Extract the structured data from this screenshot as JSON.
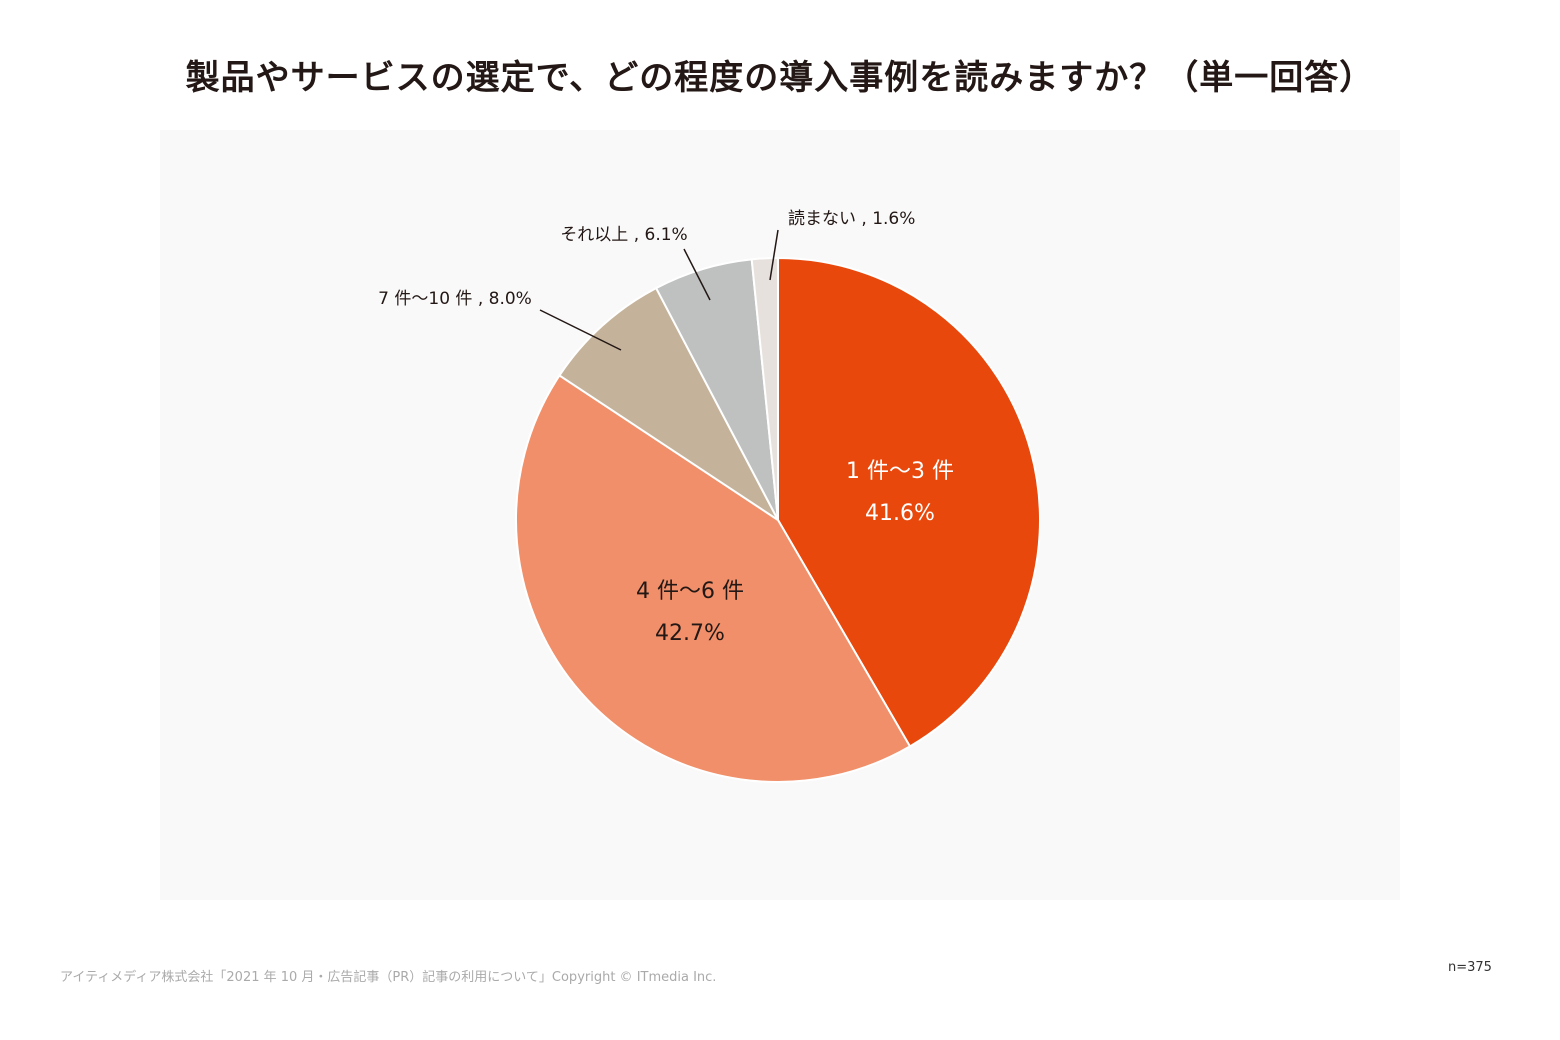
{
  "chart_data": {
    "type": "pie",
    "title": "製品やサービスの選定で、どの程度の導入事例を読みますか？（単一回答）",
    "slices": [
      {
        "name": "1 件〜3 件",
        "value": 41.6,
        "label": "41.6%",
        "color": "#e8480c",
        "text_color": "#ffffff",
        "label_style": "inside"
      },
      {
        "name": "4 件〜6 件",
        "value": 42.7,
        "label": "42.7%",
        "color": "#f08f69",
        "text_color": "#231815",
        "label_style": "inside"
      },
      {
        "name": "7 件〜10 件",
        "value": 8.0,
        "label": "7 件〜10 件 , 8.0%",
        "color": "#c5b29a",
        "text_color": "#231815",
        "label_style": "callout"
      },
      {
        "name": "それ以上",
        "value": 6.1,
        "label": "それ以上 , 6.1%",
        "color": "#bfc0c0",
        "text_color": "#231815",
        "label_style": "callout"
      },
      {
        "name": "読まない",
        "value": 1.6,
        "label": "読まない , 1.6%",
        "color": "#e6e1dc",
        "text_color": "#231815",
        "label_style": "callout"
      }
    ],
    "start": "12 o'clock",
    "direction": "clockwise",
    "background": "#f9f9f9"
  },
  "footer": {
    "source": "アイティメディア株式会社「2021 年 10 月・広告記事（PR）記事の利用について」Copyright © ITmedia Inc.",
    "sample_size": "n=375"
  }
}
